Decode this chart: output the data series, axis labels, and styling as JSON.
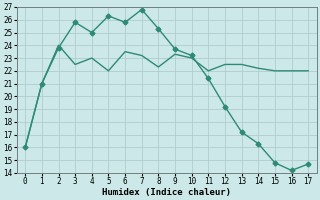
{
  "xlabel": "Humidex (Indice chaleur)",
  "line1_x": [
    0,
    1,
    2,
    3,
    4,
    5,
    6,
    7,
    8,
    9,
    10,
    11,
    12,
    13,
    14,
    15,
    16,
    17
  ],
  "line1_y": [
    16.0,
    21.0,
    24.0,
    22.5,
    23.0,
    22.0,
    23.5,
    23.2,
    22.3,
    23.3,
    23.0,
    22.0,
    22.5,
    22.5,
    22.2,
    22.0,
    22.0,
    22.0
  ],
  "line2_x": [
    0,
    1,
    2,
    3,
    4,
    5,
    6,
    7,
    8,
    9,
    10,
    11,
    12,
    13,
    14,
    15,
    16,
    17
  ],
  "line2_y": [
    16.0,
    21.0,
    23.8,
    25.8,
    25.0,
    26.3,
    25.8,
    26.8,
    25.3,
    23.7,
    23.2,
    21.4,
    19.2,
    17.2,
    16.3,
    14.8,
    14.2,
    14.7
  ],
  "line_color": "#2e8b73",
  "bg_color": "#cce8e8",
  "grid_color": "#b0cccc",
  "ylim": [
    14,
    27
  ],
  "xlim": [
    -0.5,
    17.5
  ],
  "yticks": [
    14,
    15,
    16,
    17,
    18,
    19,
    20,
    21,
    22,
    23,
    24,
    25,
    26,
    27
  ],
  "xticks": [
    0,
    1,
    2,
    3,
    4,
    5,
    6,
    7,
    8,
    9,
    10,
    11,
    12,
    13,
    14,
    15,
    16,
    17
  ],
  "marker": "D",
  "markersize": 2.5,
  "linewidth": 1.0,
  "tick_fontsize": 5.5,
  "xlabel_fontsize": 6.5
}
